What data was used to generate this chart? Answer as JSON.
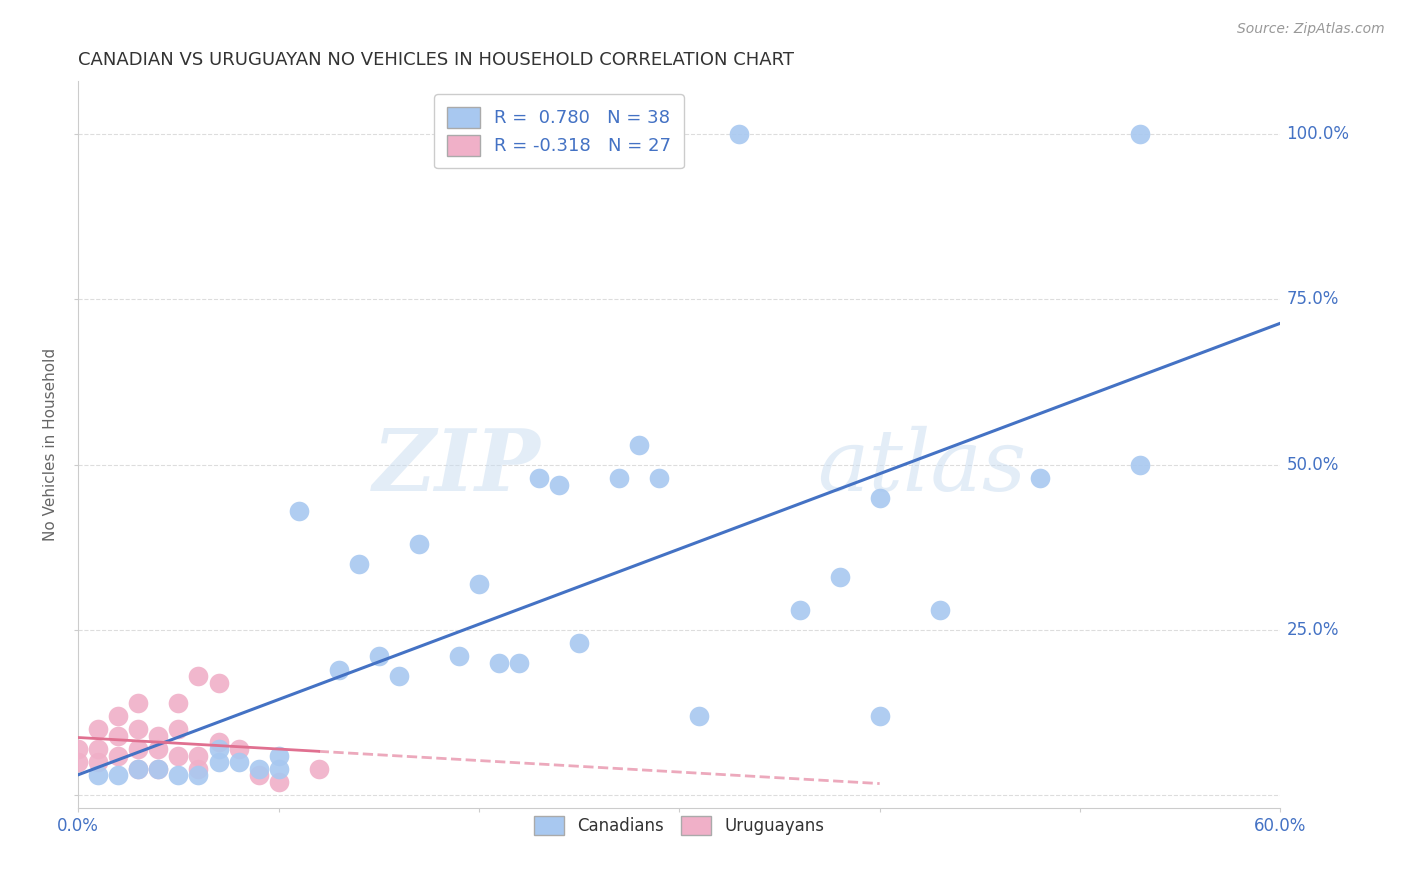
{
  "title": "CANADIAN VS URUGUAYAN NO VEHICLES IN HOUSEHOLD CORRELATION CHART",
  "source": "Source: ZipAtlas.com",
  "ylabel": "No Vehicles in Household",
  "xlim": [
    0.0,
    0.6
  ],
  "ylim": [
    -0.02,
    1.08
  ],
  "yticks": [
    0.0,
    0.25,
    0.5,
    0.75,
    1.0
  ],
  "ytick_labels": [
    "",
    "25.0%",
    "50.0%",
    "75.0%",
    "100.0%"
  ],
  "xticks": [
    0.0,
    0.1,
    0.2,
    0.3,
    0.4,
    0.5,
    0.6
  ],
  "xtick_labels": [
    "0.0%",
    "",
    "",
    "",
    "",
    "",
    "60.0%"
  ],
  "canadian_color": "#A8C8F0",
  "uruguayan_color": "#F0B0C8",
  "trendline_canadian_color": "#4472C4",
  "trendline_uruguayan_color": "#E07090",
  "canadian_R": 0.78,
  "canadian_N": 38,
  "uruguayan_R": -0.318,
  "uruguayan_N": 27,
  "canadians_x": [
    0.01,
    0.02,
    0.03,
    0.04,
    0.05,
    0.06,
    0.07,
    0.07,
    0.08,
    0.09,
    0.1,
    0.1,
    0.11,
    0.13,
    0.14,
    0.15,
    0.16,
    0.17,
    0.19,
    0.2,
    0.21,
    0.22,
    0.23,
    0.24,
    0.25,
    0.27,
    0.28,
    0.29,
    0.31,
    0.33,
    0.36,
    0.38,
    0.4,
    0.4,
    0.43,
    0.48,
    0.53,
    0.53
  ],
  "canadians_y": [
    0.03,
    0.03,
    0.04,
    0.04,
    0.03,
    0.03,
    0.05,
    0.07,
    0.05,
    0.04,
    0.06,
    0.04,
    0.43,
    0.19,
    0.35,
    0.21,
    0.18,
    0.38,
    0.21,
    0.32,
    0.2,
    0.2,
    0.48,
    0.47,
    0.23,
    0.48,
    0.53,
    0.48,
    0.12,
    1.0,
    0.28,
    0.33,
    0.45,
    0.12,
    0.28,
    0.48,
    1.0,
    0.5
  ],
  "uruguayans_x": [
    0.0,
    0.0,
    0.01,
    0.01,
    0.01,
    0.02,
    0.02,
    0.02,
    0.03,
    0.03,
    0.03,
    0.03,
    0.04,
    0.04,
    0.04,
    0.05,
    0.05,
    0.05,
    0.06,
    0.06,
    0.06,
    0.07,
    0.07,
    0.08,
    0.09,
    0.1,
    0.12
  ],
  "uruguayans_y": [
    0.05,
    0.07,
    0.05,
    0.07,
    0.1,
    0.06,
    0.09,
    0.12,
    0.04,
    0.07,
    0.1,
    0.14,
    0.04,
    0.07,
    0.09,
    0.06,
    0.1,
    0.14,
    0.04,
    0.06,
    0.18,
    0.08,
    0.17,
    0.07,
    0.03,
    0.02,
    0.04
  ],
  "watermark_zip": "ZIP",
  "watermark_atlas": "atlas",
  "background_color": "#FFFFFF",
  "grid_color": "#DDDDDD"
}
